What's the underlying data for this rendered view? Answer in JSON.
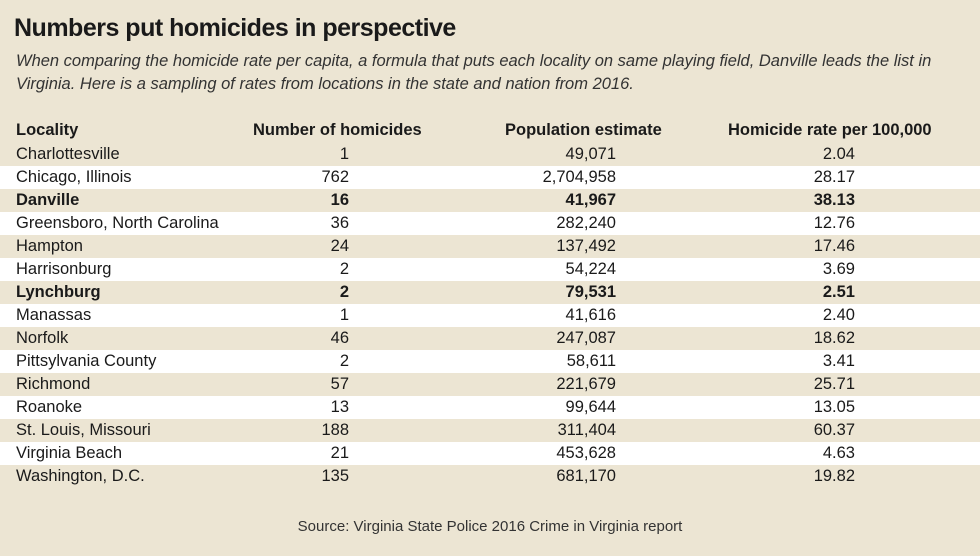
{
  "header": {
    "title": "Numbers put homicides in perspective",
    "subtitle": "When comparing the homicide rate per capita, a formula that puts each locality on same playing field, Danville leads the list in Virginia. Here is a sampling of rates from locations in the state and nation from 2016."
  },
  "table": {
    "columns": [
      "Locality",
      "Number of homicides",
      "Population estimate",
      "Homicide rate per 100,000"
    ],
    "rows": [
      [
        "Charlottesville",
        "1",
        "49,071",
        "2.04"
      ],
      [
        "Chicago, Illinois",
        "762",
        "2,704,958",
        "28.17"
      ],
      [
        "Danville",
        "16",
        "41,967",
        "38.13"
      ],
      [
        "Greensboro, North Carolina",
        "36",
        "282,240",
        "12.76"
      ],
      [
        "Hampton",
        "24",
        "137,492",
        "17.46"
      ],
      [
        "Harrisonburg",
        "2",
        "54,224",
        "3.69"
      ],
      [
        "Lynchburg",
        "2",
        "79,531",
        "2.51"
      ],
      [
        "Manassas",
        "1",
        "41,616",
        "2.40"
      ],
      [
        "Norfolk",
        "46",
        "247,087",
        "18.62"
      ],
      [
        "Pittsylvania County",
        "2",
        "58,611",
        "3.41"
      ],
      [
        "Richmond",
        "57",
        "221,679",
        "25.71"
      ],
      [
        "Roanoke",
        "13",
        "99,644",
        "13.05"
      ],
      [
        "St. Louis, Missouri",
        "188",
        "311,404",
        "60.37"
      ],
      [
        "Virginia Beach",
        "21",
        "453,628",
        "4.63"
      ],
      [
        "Washington, D.C.",
        "135",
        "681,170",
        "19.82"
      ]
    ],
    "bold_rows": [
      2,
      6
    ]
  },
  "footer": {
    "source": "Source: Virginia State Police 2016 Crime in Virginia report"
  }
}
